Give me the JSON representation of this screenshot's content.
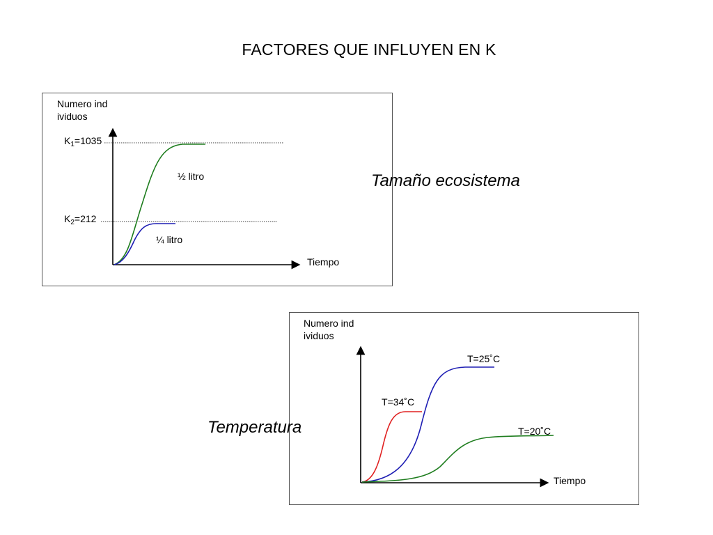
{
  "title": "FACTORES QUE INFLUYEN EN K",
  "chart_data": [
    {
      "type": "line",
      "caption": "Tamaño ecosistema",
      "ylabel": "Numero individuos",
      "xlabel": "Tiempo",
      "reference_lines": [
        {
          "symbol": "K",
          "subscript": "1",
          "value_text": "=1035",
          "value": 1035
        },
        {
          "symbol": "K",
          "subscript": "2",
          "value_text": "=212",
          "value": 212
        }
      ],
      "series": [
        {
          "name": "½ litro",
          "color": "#1e7d1e",
          "carrying_capacity": 1035
        },
        {
          "name": "¼  litro",
          "color": "#1f1fb4",
          "carrying_capacity": 212
        }
      ]
    },
    {
      "type": "line",
      "caption": "Temperatura",
      "ylabel": "Numero individuos",
      "xlabel": "Tiempo",
      "series": [
        {
          "name": "T=34˚C",
          "color": "#e02020"
        },
        {
          "name": "T=25˚C",
          "color": "#1f1fb4"
        },
        {
          "name": "T=20˚C",
          "color": "#1e7d1e"
        }
      ]
    }
  ]
}
